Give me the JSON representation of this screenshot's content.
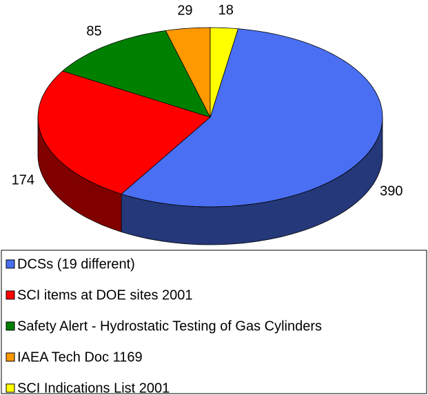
{
  "chart_data": {
    "type": "pie3d",
    "categories": [
      "DCSs (19 different)",
      "SCI items at DOE sites 2001",
      "Safety Alert - Hydrostatic Testing of Gas Cylinders",
      "IAEA Tech Doc 1169",
      "SCI Indications List 2001"
    ],
    "values": [
      390,
      174,
      85,
      29,
      18
    ],
    "colors": [
      "#4a6ff2",
      "#ff0000",
      "#008000",
      "#ff9900",
      "#ffff00"
    ],
    "legend": "bottom"
  }
}
